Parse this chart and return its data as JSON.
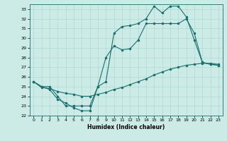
{
  "xlabel": "Humidex (Indice chaleur)",
  "xlim": [
    -0.5,
    23.5
  ],
  "ylim": [
    22,
    33.5
  ],
  "yticks": [
    22,
    23,
    24,
    25,
    26,
    27,
    28,
    29,
    30,
    31,
    32,
    33
  ],
  "xticks": [
    0,
    1,
    2,
    3,
    4,
    5,
    6,
    7,
    8,
    9,
    10,
    11,
    12,
    13,
    14,
    15,
    16,
    17,
    18,
    19,
    20,
    21,
    22,
    23
  ],
  "bg_color": "#cceae6",
  "line_color": "#1a7070",
  "line1_x": [
    0,
    1,
    2,
    3,
    4,
    5,
    6,
    7,
    8,
    9,
    10,
    11,
    12,
    13,
    14,
    15,
    16,
    17,
    18,
    19,
    20,
    21,
    22,
    23
  ],
  "line1_y": [
    25.5,
    25.0,
    24.7,
    23.7,
    23.3,
    22.8,
    22.5,
    22.5,
    25.0,
    25.5,
    30.5,
    31.2,
    31.3,
    31.5,
    32.0,
    33.3,
    32.6,
    33.3,
    33.3,
    32.2,
    29.8,
    27.5,
    27.3,
    27.2
  ],
  "line2_x": [
    0,
    1,
    2,
    3,
    4,
    5,
    6,
    7,
    8,
    9,
    10,
    11,
    12,
    13,
    14,
    15,
    16,
    17,
    18,
    19,
    20,
    21,
    22,
    23
  ],
  "line2_y": [
    25.5,
    25.0,
    25.0,
    24.0,
    23.0,
    23.0,
    23.0,
    23.0,
    25.0,
    28.0,
    29.2,
    28.8,
    28.9,
    29.8,
    31.5,
    31.5,
    31.5,
    31.5,
    31.5,
    32.0,
    30.5,
    27.5,
    27.3,
    27.2
  ],
  "line3_x": [
    0,
    1,
    2,
    3,
    4,
    5,
    6,
    7,
    8,
    9,
    10,
    11,
    12,
    13,
    14,
    15,
    16,
    17,
    18,
    19,
    20,
    21,
    22,
    23
  ],
  "line3_y": [
    25.5,
    24.9,
    24.8,
    24.5,
    24.3,
    24.2,
    24.0,
    24.0,
    24.2,
    24.4,
    24.7,
    24.9,
    25.2,
    25.5,
    25.8,
    26.2,
    26.5,
    26.8,
    27.0,
    27.2,
    27.3,
    27.4,
    27.4,
    27.3
  ]
}
